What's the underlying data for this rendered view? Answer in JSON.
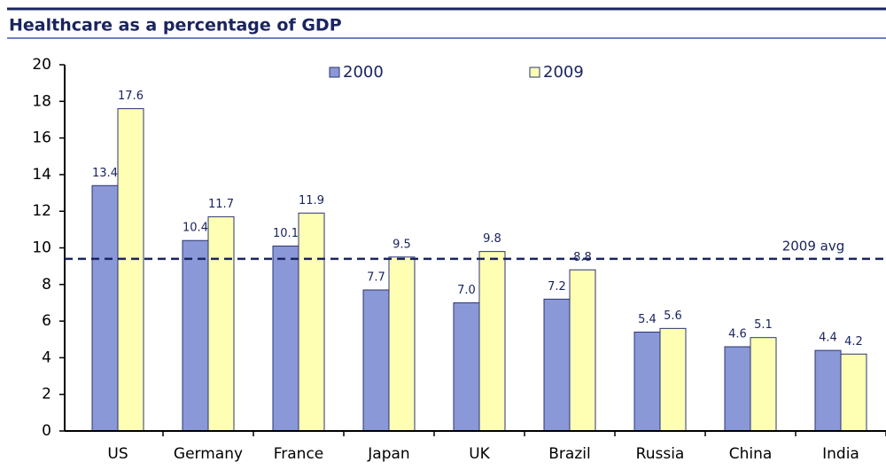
{
  "chart_data": {
    "type": "bar",
    "title": "Healthcare as a percentage of GDP",
    "categories": [
      "US",
      "Germany",
      "France",
      "Japan",
      "UK",
      "Brazil",
      "Russia",
      "China",
      "India"
    ],
    "series": [
      {
        "name": "2000",
        "color": "#8a98d8",
        "values": [
          13.4,
          10.4,
          10.1,
          7.7,
          7.0,
          7.2,
          5.4,
          4.6,
          4.4
        ],
        "value_labels": [
          "13.4",
          "10.4",
          "10.1",
          "7.7",
          "7.0",
          "7.2",
          "5.4",
          "4.6",
          "4.4"
        ]
      },
      {
        "name": "2009",
        "color": "#ffffb4",
        "values": [
          17.6,
          11.7,
          11.9,
          9.5,
          9.8,
          8.8,
          5.6,
          5.1,
          4.2
        ],
        "value_labels": [
          "17.6",
          "11.7",
          "11.9",
          "9.5",
          "9.8",
          "8.8",
          "5.6",
          "5.1",
          "4.2"
        ]
      }
    ],
    "ylim": [
      0,
      20
    ],
    "yticks": [
      0,
      2,
      4,
      6,
      8,
      10,
      12,
      14,
      16,
      18,
      20
    ],
    "annotation": {
      "text": "2009 avg",
      "value": 9.4
    }
  }
}
